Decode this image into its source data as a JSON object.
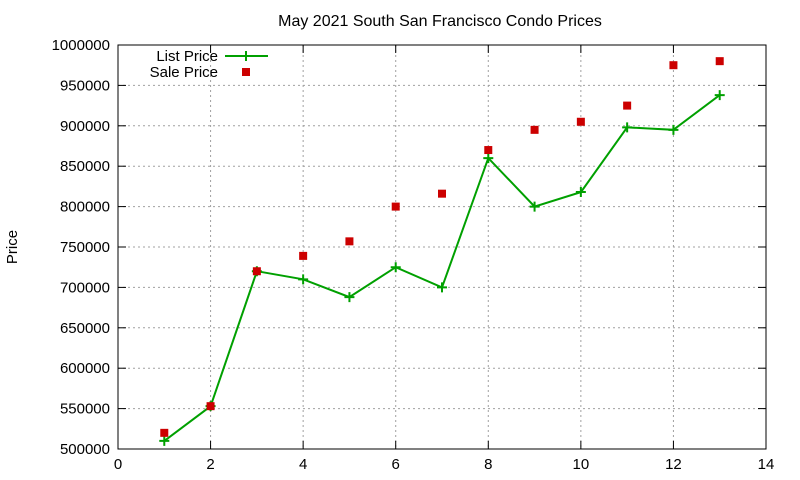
{
  "chart_data": {
    "type": "line",
    "title": "May 2021 South San Francisco Condo Prices",
    "xlabel": "",
    "ylabel": "Price",
    "xlim": [
      0,
      14
    ],
    "ylim": [
      500000,
      1000000
    ],
    "x_ticks": [
      0,
      2,
      4,
      6,
      8,
      10,
      12,
      14
    ],
    "y_ticks": [
      500000,
      550000,
      600000,
      650000,
      700000,
      750000,
      800000,
      850000,
      900000,
      950000,
      1000000
    ],
    "grid": true,
    "legend_position": "top-left",
    "series": [
      {
        "name": "List Price",
        "style": "line-with-plus-markers",
        "color": "#00a000",
        "x": [
          1,
          2,
          3,
          4,
          5,
          6,
          7,
          8,
          9,
          10,
          11,
          12,
          13
        ],
        "y": [
          510000,
          553000,
          720000,
          710000,
          688000,
          725000,
          700000,
          860000,
          800000,
          818000,
          898000,
          895000,
          938000
        ]
      },
      {
        "name": "Sale Price",
        "style": "square-markers",
        "color": "#cc0000",
        "x": [
          1,
          2,
          3,
          4,
          5,
          6,
          7,
          8,
          9,
          10,
          11,
          12,
          13
        ],
        "y": [
          520000,
          553000,
          720000,
          739000,
          757000,
          800000,
          816000,
          870000,
          895000,
          905000,
          925000,
          975000,
          980000
        ]
      }
    ]
  }
}
